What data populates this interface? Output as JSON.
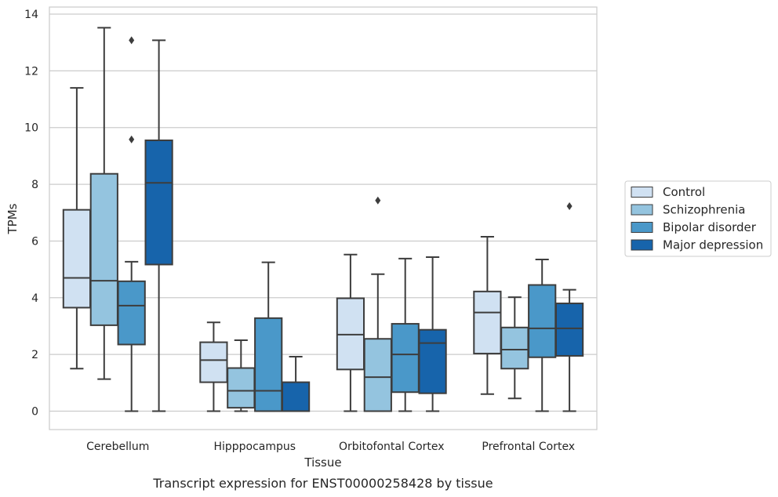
{
  "chart_data": {
    "type": "boxplot",
    "caption": "Transcript expression for ENST00000258428 by tissue",
    "xlabel": "Tissue",
    "ylabel": "TPMs",
    "ylim": [
      -0.65,
      14.25
    ],
    "yticks": [
      0,
      2,
      4,
      6,
      8,
      10,
      12,
      14
    ],
    "grid": "horizontal",
    "legend_position": "right",
    "categories": [
      "Cerebellum",
      "Hipppocampus",
      "Orbitofontal Cortex",
      "Prefrontal Cortex"
    ],
    "series": [
      {
        "name": "Control",
        "color": "#d0e1f2",
        "boxes": [
          {
            "min": 1.5,
            "q1": 3.65,
            "median": 4.7,
            "q3": 7.1,
            "max": 11.4,
            "outliers": []
          },
          {
            "min": 0.0,
            "q1": 1.02,
            "median": 1.8,
            "q3": 2.43,
            "max": 3.13,
            "outliers": []
          },
          {
            "min": 0.0,
            "q1": 1.47,
            "median": 2.7,
            "q3": 3.98,
            "max": 5.52,
            "outliers": []
          },
          {
            "min": 0.6,
            "q1": 2.03,
            "median": 3.48,
            "q3": 4.22,
            "max": 6.15,
            "outliers": []
          }
        ]
      },
      {
        "name": "Schizophrenia",
        "color": "#94c4df",
        "boxes": [
          {
            "min": 1.13,
            "q1": 3.03,
            "median": 4.6,
            "q3": 8.37,
            "max": 13.52,
            "outliers": []
          },
          {
            "min": 0.0,
            "q1": 0.12,
            "median": 0.72,
            "q3": 1.52,
            "max": 2.5,
            "outliers": []
          },
          {
            "min": 0.0,
            "q1": 0.0,
            "median": 1.2,
            "q3": 2.55,
            "max": 4.83,
            "outliers": [
              7.43
            ]
          },
          {
            "min": 0.45,
            "q1": 1.5,
            "median": 2.17,
            "q3": 2.95,
            "max": 4.02,
            "outliers": []
          }
        ]
      },
      {
        "name": "Bipolar disorder",
        "color": "#4a98c9",
        "boxes": [
          {
            "min": 0.0,
            "q1": 2.35,
            "median": 3.72,
            "q3": 4.58,
            "max": 5.27,
            "outliers": [
              9.58,
              13.08
            ]
          },
          {
            "min": 0.0,
            "q1": 0.0,
            "median": 0.72,
            "q3": 3.28,
            "max": 5.25,
            "outliers": []
          },
          {
            "min": 0.0,
            "q1": 0.67,
            "median": 2.0,
            "q3": 3.08,
            "max": 5.38,
            "outliers": []
          },
          {
            "min": 0.0,
            "q1": 1.9,
            "median": 2.92,
            "q3": 4.45,
            "max": 5.35,
            "outliers": []
          }
        ]
      },
      {
        "name": "Major depression",
        "color": "#1764ab",
        "boxes": [
          {
            "min": 0.0,
            "q1": 5.17,
            "median": 8.05,
            "q3": 9.55,
            "max": 13.08,
            "outliers": []
          },
          {
            "min": 0.0,
            "q1": 0.0,
            "median": 0.0,
            "q3": 1.02,
            "max": 1.92,
            "outliers": []
          },
          {
            "min": 0.0,
            "q1": 0.63,
            "median": 2.4,
            "q3": 2.87,
            "max": 5.43,
            "outliers": []
          },
          {
            "min": 0.0,
            "q1": 1.95,
            "median": 2.92,
            "q3": 3.8,
            "max": 4.28,
            "outliers": [
              7.23
            ]
          }
        ]
      }
    ]
  }
}
